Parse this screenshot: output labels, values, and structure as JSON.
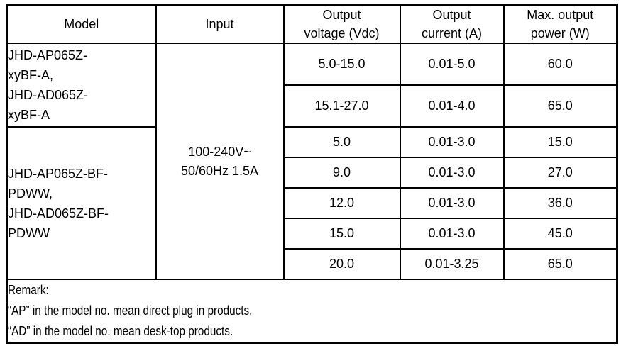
{
  "table": {
    "headers": {
      "model": "Model",
      "input": "Input",
      "voltage": {
        "lines": [
          "Output",
          "voltage (Vdc)"
        ]
      },
      "current": {
        "lines": [
          "Output",
          "current (A)"
        ]
      },
      "power": {
        "lines": [
          "Max. output",
          "power (W)"
        ]
      }
    },
    "input_value": {
      "lines": [
        "100-240V~",
        "50/60Hz 1.5A"
      ]
    },
    "model_groups": [
      {
        "lines": [
          "JHD-AP065Z-",
          "xyBF-A,",
          "JHD-AD065Z-",
          "xyBF-A"
        ]
      },
      {
        "lines": [
          "JHD-AP065Z-BF-",
          "PDWW,",
          "JHD-AD065Z-BF-",
          "PDWW"
        ]
      }
    ],
    "rows": [
      {
        "voltage": "5.0-15.0",
        "current": "0.01-5.0",
        "power": "60.0"
      },
      {
        "voltage": "15.1-27.0",
        "current": "0.01-4.0",
        "power": "65.0"
      },
      {
        "voltage": "5.0",
        "current": "0.01-3.0",
        "power": "15.0"
      },
      {
        "voltage": "9.0",
        "current": "0.01-3.0",
        "power": "27.0"
      },
      {
        "voltage": "12.0",
        "current": "0.01-3.0",
        "power": "36.0"
      },
      {
        "voltage": "15.0",
        "current": "0.01-3.0",
        "power": "45.0"
      },
      {
        "voltage": "20.0",
        "current": "0.01-3.25",
        "power": "65.0"
      }
    ],
    "remark": {
      "label": "Remark:",
      "lines": [
        "“AP” in the model no. mean direct plug in products.",
        "“AD” in the model no. mean desk-top products."
      ]
    }
  }
}
